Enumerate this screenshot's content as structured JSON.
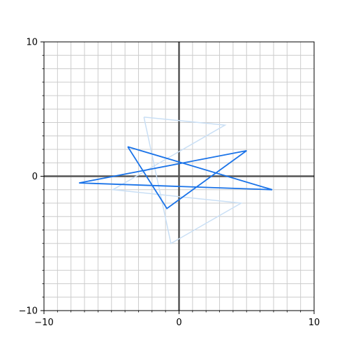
{
  "chart_data": {
    "type": "line",
    "title": "",
    "xlabel": "",
    "ylabel": "",
    "xlim": [
      -10,
      10
    ],
    "ylim": [
      -10,
      10
    ],
    "grid": true,
    "grid_step": 1,
    "x_ticks": [
      -10,
      0,
      10
    ],
    "y_ticks": [
      -10,
      0,
      10
    ],
    "x_tick_labels": [
      "−10",
      "0",
      "10"
    ],
    "y_tick_labels": [
      "−10",
      "0",
      "10"
    ],
    "colors": {
      "grid": "#cccccc",
      "axes": "#555555",
      "frame": "#000000",
      "series_light": "#c9dff5",
      "series_dark": "#1a73e8"
    },
    "series": [
      {
        "style": "light",
        "x": [
          -2.6,
          3.4,
          -4.9,
          4.6,
          -0.6,
          -2.6
        ],
        "y": [
          4.4,
          3.8,
          -1.0,
          -2.0,
          -5.0,
          4.4
        ]
      },
      {
        "style": "dark",
        "x": [
          -3.8,
          6.9,
          -7.4,
          5.0,
          -0.9,
          -3.8
        ],
        "y": [
          2.2,
          -1.0,
          -0.5,
          1.9,
          -2.4,
          2.2
        ]
      }
    ]
  }
}
